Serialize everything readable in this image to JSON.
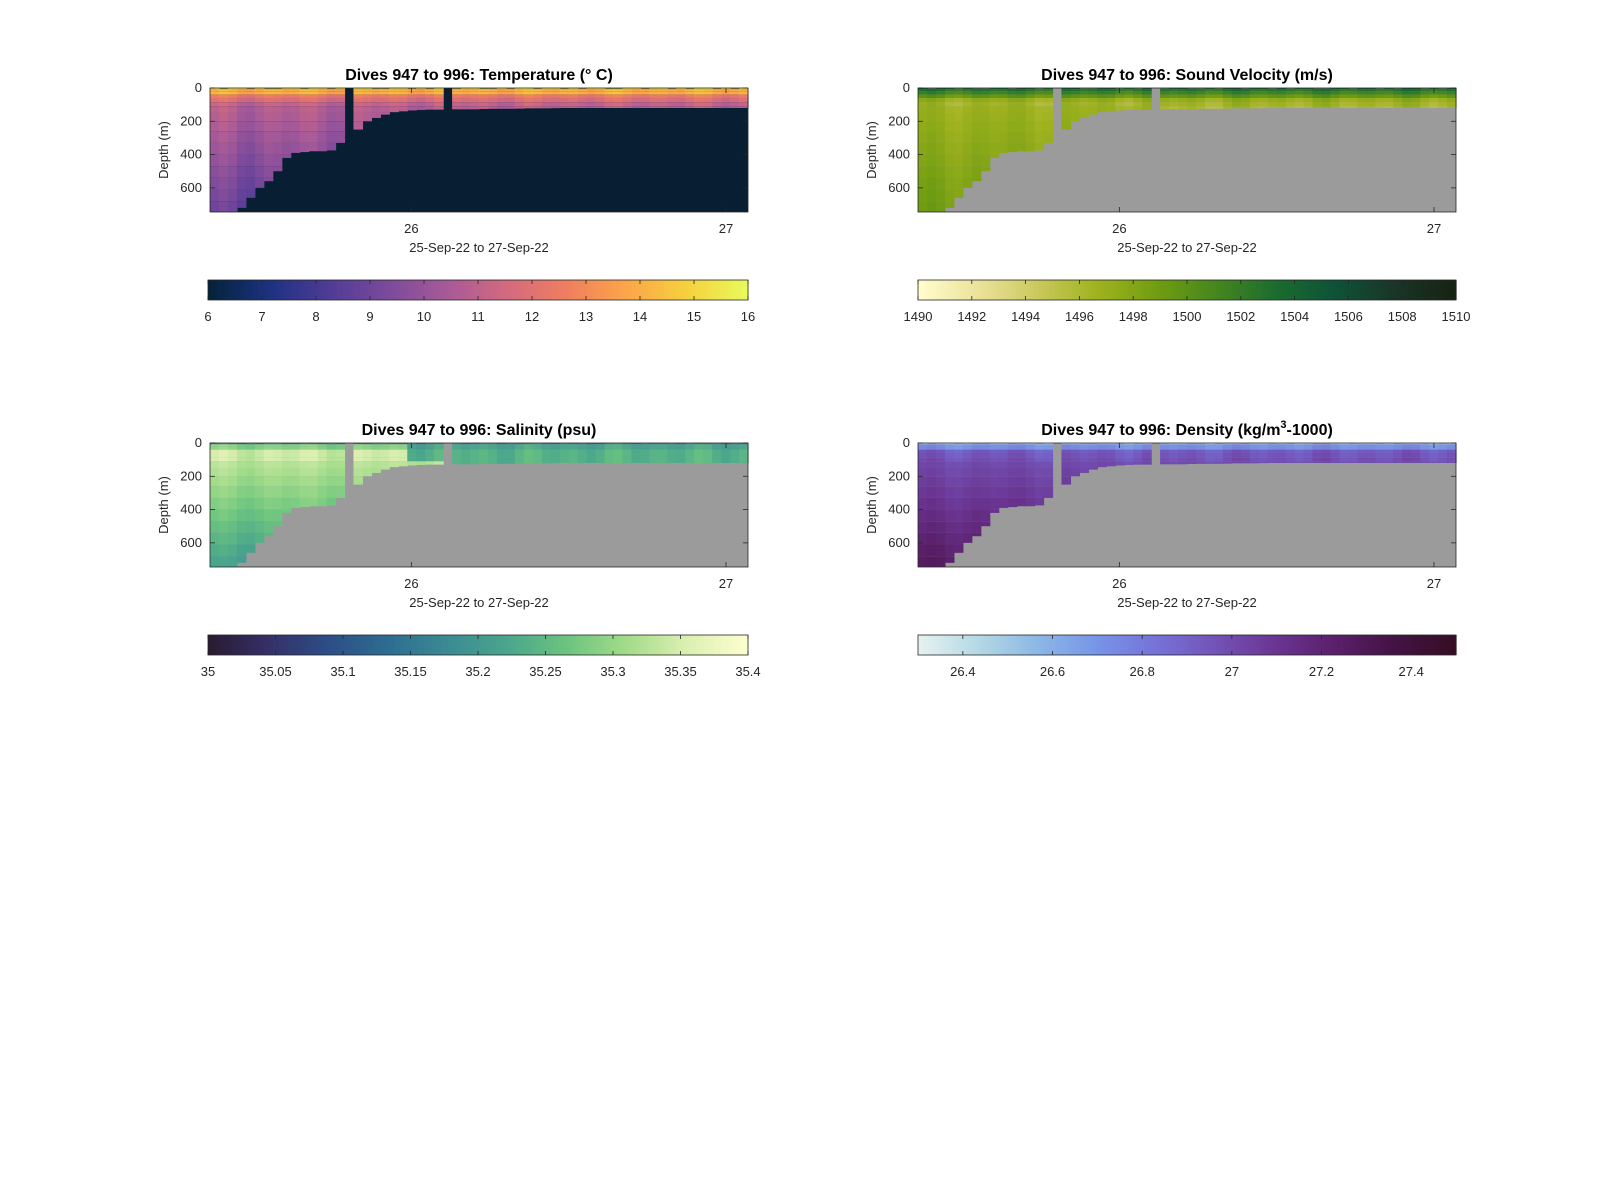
{
  "chart_data": [
    {
      "type": "heatmap",
      "title": "Dives 947 to 996: Temperature (° C)",
      "xlabel": "25-Sep-22 to 27-Sep-22",
      "ylabel": "Depth (m)",
      "x_ticks": [
        "26",
        "27"
      ],
      "x_tick_values": [
        26,
        27
      ],
      "xlim": [
        25.36,
        27.07
      ],
      "y_ticks": [
        "0",
        "200",
        "400",
        "600"
      ],
      "y_tick_values": [
        0,
        200,
        400,
        600
      ],
      "ylim": [
        0,
        745
      ],
      "y_reversed": true,
      "no_data_color": "#081f33",
      "colorbar": {
        "ticks": [
          "6",
          "7",
          "8",
          "9",
          "10",
          "11",
          "12",
          "13",
          "14",
          "15",
          "16"
        ],
        "range": [
          6,
          16
        ],
        "colormap": "thermal"
      }
    },
    {
      "type": "heatmap",
      "title": "Dives 947 to 996: Sound Velocity (m/s)",
      "xlabel": "25-Sep-22 to 27-Sep-22",
      "ylabel": "Depth (m)",
      "x_ticks": [
        "26",
        "27"
      ],
      "x_tick_values": [
        26,
        27
      ],
      "xlim": [
        25.36,
        27.07
      ],
      "y_ticks": [
        "0",
        "200",
        "400",
        "600"
      ],
      "y_tick_values": [
        0,
        200,
        400,
        600
      ],
      "ylim": [
        0,
        745
      ],
      "y_reversed": true,
      "no_data_color": "#9b9b9b",
      "colorbar": {
        "ticks": [
          "1490",
          "1492",
          "1494",
          "1496",
          "1498",
          "1500",
          "1502",
          "1504",
          "1506",
          "1508",
          "1510"
        ],
        "range": [
          1490,
          1510
        ],
        "colormap": "speed"
      }
    },
    {
      "type": "heatmap",
      "title": "Dives 947 to 996: Salinity (psu)",
      "xlabel": "25-Sep-22 to 27-Sep-22",
      "ylabel": "Depth (m)",
      "x_ticks": [
        "26",
        "27"
      ],
      "x_tick_values": [
        26,
        27
      ],
      "xlim": [
        25.36,
        27.07
      ],
      "y_ticks": [
        "0",
        "200",
        "400",
        "600"
      ],
      "y_tick_values": [
        0,
        200,
        400,
        600
      ],
      "ylim": [
        0,
        745
      ],
      "y_reversed": true,
      "no_data_color": "#9b9b9b",
      "colorbar": {
        "ticks": [
          "35",
          "35.05",
          "35.1",
          "35.15",
          "35.2",
          "35.25",
          "35.3",
          "35.35",
          "35.4"
        ],
        "range": [
          35,
          35.4
        ],
        "colormap": "haline"
      }
    },
    {
      "type": "heatmap",
      "title": "Dives 947 to 996: Density (kg/m³-1000)",
      "title_parts": [
        "Dives 947 to 996: Density (kg/m",
        "3",
        "-1000)"
      ],
      "xlabel": "25-Sep-22 to 27-Sep-22",
      "ylabel": "Depth (m)",
      "x_ticks": [
        "26",
        "27"
      ],
      "x_tick_values": [
        26,
        27
      ],
      "xlim": [
        25.36,
        27.07
      ],
      "y_ticks": [
        "0",
        "200",
        "400",
        "600"
      ],
      "y_tick_values": [
        0,
        200,
        400,
        600
      ],
      "ylim": [
        0,
        745
      ],
      "y_reversed": true,
      "no_data_color": "#9b9b9b",
      "colorbar": {
        "ticks": [
          "26.4",
          "26.6",
          "26.8",
          "27",
          "27.2",
          "27.4"
        ],
        "range": [
          26.3,
          27.5
        ],
        "colormap": "dense"
      }
    }
  ],
  "colors": {
    "thermal": [
      "#04233a",
      "#1c3280",
      "#4f3b96",
      "#7c4a9c",
      "#a85a98",
      "#d46a7e",
      "#ef7f5e",
      "#fba64a",
      "#f6d13f",
      "#e8fa5b"
    ],
    "speed": [
      "#fffdcd",
      "#ebe29a",
      "#c9c95c",
      "#9fb21e",
      "#719d12",
      "#45861f",
      "#1b6c2f",
      "#0e5237",
      "#1a3527",
      "#172313"
    ],
    "haline": [
      "#2a1b32",
      "#353068",
      "#2d4e87",
      "#2d6d91",
      "#3b8b93",
      "#4aa68c",
      "#6cc47f",
      "#a3dc8a",
      "#dcefb2",
      "#fdfece"
    ],
    "dense": [
      "#e6f1f1",
      "#b4d8e4",
      "#8cb7e6",
      "#7794e8",
      "#7672d8",
      "#7352b6",
      "#6a3592",
      "#5a1f6a",
      "#431343",
      "#360e24"
    ],
    "no_data_gray": "#9b9b9b",
    "no_data_navy": "#081f33"
  },
  "section": {
    "bottom_depth_profile": [
      745,
      745,
      745,
      720,
      660,
      600,
      560,
      500,
      420,
      390,
      385,
      380,
      380,
      375,
      330,
      290,
      250,
      200,
      180,
      160,
      145,
      140,
      135,
      132,
      130,
      130,
      128,
      128,
      128,
      128,
      126,
      125,
      125,
      125,
      124,
      122,
      122,
      122,
      121,
      120,
      120,
      120,
      120,
      120,
      120,
      120,
      120,
      120,
      120,
      120,
      120,
      120,
      120,
      120,
      120,
      120,
      120,
      120,
      120,
      120
    ],
    "gap_columns": [
      15,
      26
    ],
    "surface_pattern": [
      0,
      1,
      0,
      0,
      1,
      0,
      1,
      1,
      0,
      0,
      1,
      0,
      0,
      1,
      0,
      1,
      0,
      0,
      1,
      1,
      0,
      0,
      1,
      0,
      1,
      0,
      0,
      1,
      0,
      0,
      1,
      1,
      0,
      1,
      0,
      0,
      1,
      0,
      0,
      1,
      0,
      1,
      0,
      0,
      1,
      1,
      0,
      0,
      1,
      0,
      0,
      1,
      0,
      1,
      0,
      0,
      1,
      0,
      1,
      0
    ]
  }
}
